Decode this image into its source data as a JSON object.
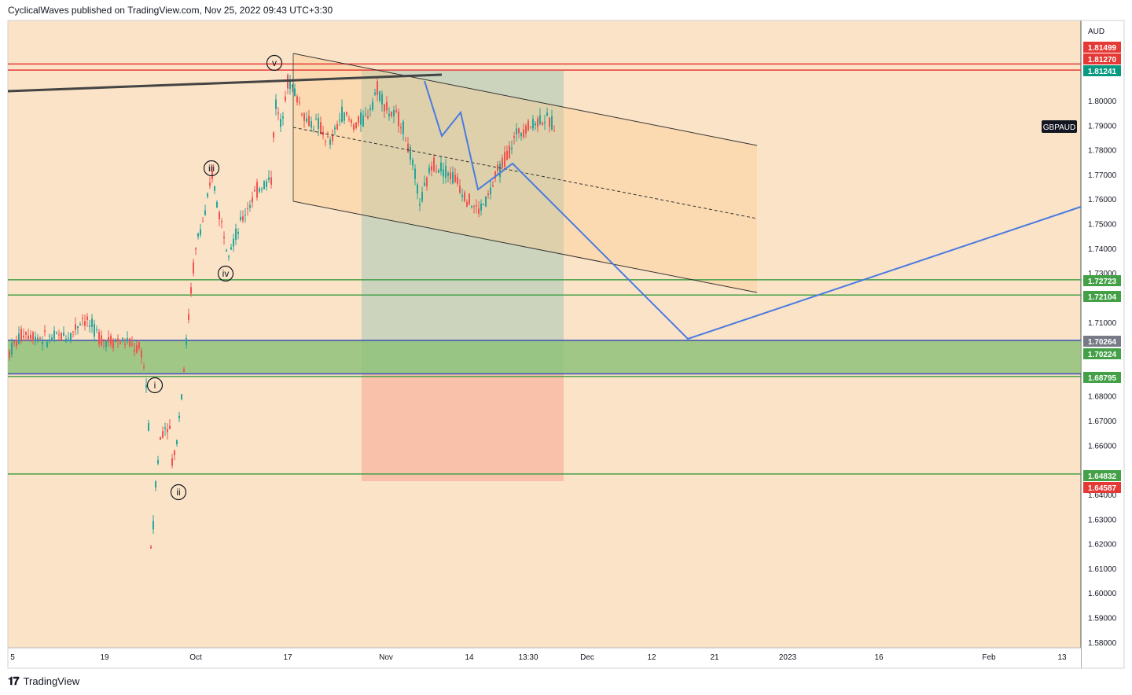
{
  "header": {
    "publisher_line": "CyclicalWaves published on TradingView.com, Nov 25, 2022 09:43 UTC+3:30"
  },
  "footer": {
    "brand": "TradingView",
    "logo_glyph": "𝟏𝟕"
  },
  "colors": {
    "background": "#fbe3c7",
    "bull_candle": "#26a69a",
    "bear_candle": "#ef5350",
    "red_line": "#e53935",
    "green_line": "#43a047",
    "blue_line": "#4a7be0",
    "zone_green": "#8fc27a"
  },
  "chart_data": {
    "type": "candlestick",
    "symbol": "GBPAUD",
    "currency": "AUD",
    "x_ticks": [
      "5",
      "19",
      "Oct",
      "17",
      "Nov",
      "14",
      "13:30",
      "Dec",
      "12",
      "21",
      "2023",
      "16",
      "Feb",
      "13"
    ],
    "y_ticks": [
      "1.80000",
      "1.79000",
      "1.78000",
      "1.77000",
      "1.76000",
      "1.75000",
      "1.74000",
      "1.73000",
      "1.71000",
      "1.68000",
      "1.67000",
      "1.66000",
      "1.64000",
      "1.63000",
      "1.62000",
      "1.61000",
      "1.60000",
      "1.59000",
      "1.58000"
    ],
    "ylim": [
      1.58,
      1.822
    ],
    "price_labels": [
      {
        "text": "1.81499",
        "value": 1.81499,
        "color": "#e53935"
      },
      {
        "text": "1.81270",
        "value": 1.8127,
        "color": "#e53935"
      },
      {
        "text": "1.81241",
        "value": 1.81241,
        "color": "#089981"
      },
      {
        "text": "1.72723",
        "value": 1.72723,
        "color": "#43a047"
      },
      {
        "text": "1.72104",
        "value": 1.72104,
        "color": "#43a047"
      },
      {
        "text": "1.70264",
        "value": 1.70264,
        "color": "#787b86"
      },
      {
        "text": "1.70224",
        "value": 1.70224,
        "color": "#43a047"
      },
      {
        "text": "1.68795",
        "value": 1.68795,
        "color": "#43a047"
      },
      {
        "text": "1.64832",
        "value": 1.64832,
        "color": "#43a047"
      },
      {
        "text": "1.64587",
        "value": 1.64587,
        "color": "#e53935"
      }
    ],
    "horizontal_lines": [
      {
        "value": 1.8149,
        "color": "#e53935"
      },
      {
        "value": 1.8124,
        "color": "#e53935"
      },
      {
        "value": 1.72723,
        "color": "#43a047"
      },
      {
        "value": 1.72104,
        "color": "#43a047"
      },
      {
        "value": 1.70264,
        "color": "#3f51b5"
      },
      {
        "value": 1.689,
        "color": "#3f51b5"
      },
      {
        "value": 1.68795,
        "color": "#43a047"
      },
      {
        "value": 1.64832,
        "color": "#43a047"
      }
    ],
    "wave_labels": [
      "v",
      "iii",
      "iv",
      "i",
      "ii"
    ],
    "candles": []
  }
}
